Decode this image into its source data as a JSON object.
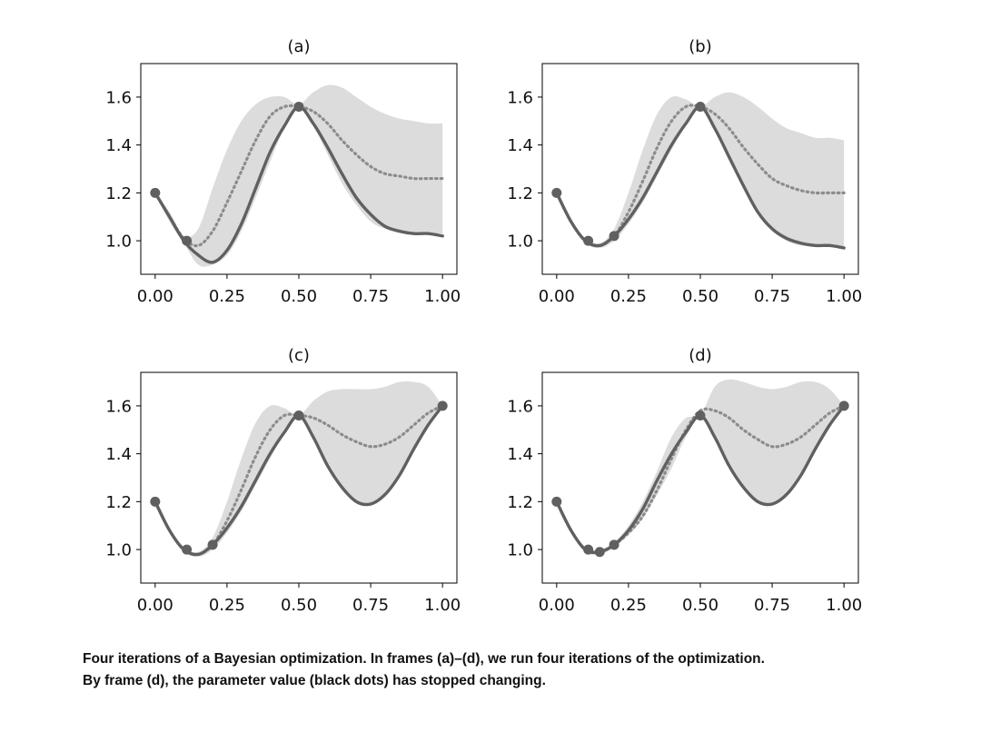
{
  "chart_data": [
    {
      "type": "line",
      "title": "(a)",
      "xlim": [
        -0.05,
        1.05
      ],
      "ylim": [
        0.86,
        1.74
      ],
      "xticks": [
        "0.00",
        "0.25",
        "0.50",
        "0.75",
        "1.00"
      ],
      "yticks": [
        "1.0",
        "1.2",
        "1.4",
        "1.6"
      ],
      "grid": false,
      "x": [
        0,
        0.05,
        0.1,
        0.15,
        0.2,
        0.25,
        0.3,
        0.35,
        0.4,
        0.45,
        0.5,
        0.55,
        0.6,
        0.65,
        0.7,
        0.75,
        0.8,
        0.85,
        0.9,
        0.95,
        1.0
      ],
      "series": [
        {
          "role": "true",
          "values": [
            1.2,
            1.1,
            1.0,
            0.94,
            0.91,
            0.96,
            1.07,
            1.22,
            1.37,
            1.48,
            1.56,
            1.49,
            1.39,
            1.28,
            1.18,
            1.11,
            1.06,
            1.04,
            1.03,
            1.03,
            1.02
          ]
        },
        {
          "role": "mean",
          "values": [
            1.2,
            1.1,
            1.01,
            0.98,
            1.04,
            1.16,
            1.29,
            1.42,
            1.52,
            1.56,
            1.56,
            1.54,
            1.49,
            1.42,
            1.36,
            1.31,
            1.28,
            1.27,
            1.26,
            1.26,
            1.26
          ]
        },
        {
          "role": "upper",
          "values": [
            1.2,
            1.12,
            1.02,
            1.05,
            1.22,
            1.38,
            1.5,
            1.57,
            1.6,
            1.6,
            1.57,
            1.62,
            1.65,
            1.64,
            1.6,
            1.56,
            1.53,
            1.51,
            1.5,
            1.49,
            1.49
          ]
        },
        {
          "role": "lower",
          "values": [
            1.2,
            1.08,
            0.99,
            0.9,
            0.9,
            0.94,
            1.04,
            1.18,
            1.33,
            1.47,
            1.55,
            1.48,
            1.36,
            1.24,
            1.15,
            1.08,
            1.05,
            1.04,
            1.03,
            1.03,
            1.03
          ]
        }
      ],
      "points": {
        "x": [
          0,
          0.11,
          0.5
        ],
        "y": [
          1.2,
          1.0,
          1.56
        ]
      }
    },
    {
      "type": "line",
      "title": "(b)",
      "xlim": [
        -0.05,
        1.05
      ],
      "ylim": [
        0.86,
        1.74
      ],
      "xticks": [
        "0.00",
        "0.25",
        "0.50",
        "0.75",
        "1.00"
      ],
      "yticks": [
        "1.0",
        "1.2",
        "1.4",
        "1.6"
      ],
      "grid": false,
      "x": [
        0,
        0.05,
        0.1,
        0.15,
        0.2,
        0.25,
        0.3,
        0.35,
        0.4,
        0.45,
        0.5,
        0.55,
        0.6,
        0.65,
        0.7,
        0.75,
        0.8,
        0.85,
        0.9,
        0.95,
        1.0
      ],
      "series": [
        {
          "role": "true",
          "values": [
            1.2,
            1.08,
            1.0,
            0.98,
            1.02,
            1.09,
            1.18,
            1.29,
            1.4,
            1.49,
            1.56,
            1.47,
            1.35,
            1.23,
            1.12,
            1.05,
            1.01,
            0.99,
            0.98,
            0.98,
            0.97
          ]
        },
        {
          "role": "mean",
          "values": [
            1.2,
            1.08,
            1.0,
            0.98,
            1.02,
            1.12,
            1.25,
            1.39,
            1.5,
            1.56,
            1.56,
            1.53,
            1.47,
            1.39,
            1.32,
            1.26,
            1.23,
            1.21,
            1.2,
            1.2,
            1.2
          ]
        },
        {
          "role": "upper",
          "values": [
            1.2,
            1.09,
            1.01,
            0.99,
            1.05,
            1.2,
            1.38,
            1.53,
            1.6,
            1.59,
            1.56,
            1.6,
            1.62,
            1.6,
            1.56,
            1.51,
            1.47,
            1.45,
            1.43,
            1.43,
            1.42
          ]
        },
        {
          "role": "lower",
          "values": [
            1.2,
            1.07,
            0.99,
            0.97,
            1.0,
            1.07,
            1.16,
            1.27,
            1.38,
            1.48,
            1.55,
            1.46,
            1.34,
            1.22,
            1.11,
            1.04,
            1.0,
            0.98,
            0.98,
            0.98,
            0.97
          ]
        }
      ],
      "points": {
        "x": [
          0,
          0.11,
          0.2,
          0.5
        ],
        "y": [
          1.2,
          1.0,
          1.02,
          1.56
        ]
      }
    },
    {
      "type": "line",
      "title": "(c)",
      "xlim": [
        -0.05,
        1.05
      ],
      "ylim": [
        0.86,
        1.74
      ],
      "xticks": [
        "0.00",
        "0.25",
        "0.50",
        "0.75",
        "1.00"
      ],
      "yticks": [
        "1.0",
        "1.2",
        "1.4",
        "1.6"
      ],
      "grid": false,
      "x": [
        0,
        0.05,
        0.1,
        0.15,
        0.2,
        0.25,
        0.3,
        0.35,
        0.4,
        0.45,
        0.5,
        0.55,
        0.6,
        0.65,
        0.7,
        0.75,
        0.8,
        0.85,
        0.9,
        0.95,
        1.0
      ],
      "series": [
        {
          "role": "true",
          "values": [
            1.2,
            1.08,
            1.0,
            0.98,
            1.02,
            1.09,
            1.18,
            1.29,
            1.4,
            1.49,
            1.56,
            1.47,
            1.35,
            1.26,
            1.2,
            1.19,
            1.23,
            1.31,
            1.42,
            1.52,
            1.6
          ]
        },
        {
          "role": "mean",
          "values": [
            1.2,
            1.08,
            1.0,
            0.98,
            1.02,
            1.12,
            1.25,
            1.39,
            1.5,
            1.56,
            1.56,
            1.55,
            1.52,
            1.48,
            1.45,
            1.43,
            1.44,
            1.47,
            1.52,
            1.57,
            1.6
          ]
        },
        {
          "role": "upper",
          "values": [
            1.2,
            1.09,
            1.01,
            0.99,
            1.05,
            1.2,
            1.38,
            1.53,
            1.6,
            1.59,
            1.56,
            1.62,
            1.66,
            1.67,
            1.67,
            1.67,
            1.68,
            1.7,
            1.7,
            1.68,
            1.6
          ]
        },
        {
          "role": "lower",
          "values": [
            1.2,
            1.07,
            0.99,
            0.97,
            1.0,
            1.07,
            1.16,
            1.27,
            1.38,
            1.48,
            1.55,
            1.46,
            1.34,
            1.25,
            1.2,
            1.19,
            1.22,
            1.3,
            1.41,
            1.51,
            1.59
          ]
        }
      ],
      "points": {
        "x": [
          0,
          0.11,
          0.2,
          0.5,
          1.0
        ],
        "y": [
          1.2,
          1.0,
          1.02,
          1.56,
          1.6
        ]
      }
    },
    {
      "type": "line",
      "title": "(d)",
      "xlim": [
        -0.05,
        1.05
      ],
      "ylim": [
        0.86,
        1.74
      ],
      "xticks": [
        "0.00",
        "0.25",
        "0.50",
        "0.75",
        "1.00"
      ],
      "yticks": [
        "1.0",
        "1.2",
        "1.4",
        "1.6"
      ],
      "grid": false,
      "x": [
        0,
        0.05,
        0.1,
        0.15,
        0.2,
        0.25,
        0.3,
        0.35,
        0.4,
        0.45,
        0.5,
        0.55,
        0.6,
        0.65,
        0.7,
        0.75,
        0.8,
        0.85,
        0.9,
        0.95,
        1.0
      ],
      "series": [
        {
          "role": "true",
          "values": [
            1.2,
            1.08,
            1.0,
            0.99,
            1.02,
            1.08,
            1.17,
            1.29,
            1.4,
            1.49,
            1.56,
            1.47,
            1.35,
            1.26,
            1.2,
            1.19,
            1.23,
            1.31,
            1.42,
            1.52,
            1.6
          ]
        },
        {
          "role": "mean",
          "values": [
            1.2,
            1.08,
            1.0,
            0.99,
            1.02,
            1.07,
            1.14,
            1.25,
            1.38,
            1.5,
            1.58,
            1.58,
            1.55,
            1.5,
            1.46,
            1.43,
            1.44,
            1.47,
            1.52,
            1.57,
            1.6
          ]
        },
        {
          "role": "upper",
          "values": [
            1.2,
            1.09,
            1.01,
            1.0,
            1.03,
            1.1,
            1.2,
            1.33,
            1.47,
            1.55,
            1.56,
            1.68,
            1.71,
            1.7,
            1.68,
            1.67,
            1.68,
            1.7,
            1.7,
            1.67,
            1.6
          ]
        },
        {
          "role": "lower",
          "values": [
            1.2,
            1.07,
            0.99,
            0.98,
            1.01,
            1.06,
            1.13,
            1.23,
            1.34,
            1.47,
            1.55,
            1.46,
            1.34,
            1.25,
            1.2,
            1.19,
            1.22,
            1.3,
            1.41,
            1.51,
            1.59
          ]
        }
      ],
      "points": {
        "x": [
          0,
          0.11,
          0.15,
          0.2,
          0.5,
          1.0
        ],
        "y": [
          1.2,
          1.0,
          0.99,
          1.02,
          1.56,
          1.6
        ]
      }
    }
  ],
  "colors": {
    "band": "#dcdcdc",
    "true_line": "#606060",
    "mean_line": "#8c8c8c",
    "points": "#606060",
    "axis": "#000000",
    "text": "#111111"
  },
  "caption": {
    "line1": "Four iterations of a Bayesian optimization. In frames (a)–(d), we run four iterations of the optimization.",
    "line2": "By frame (d), the parameter value (black dots) has stopped changing."
  }
}
